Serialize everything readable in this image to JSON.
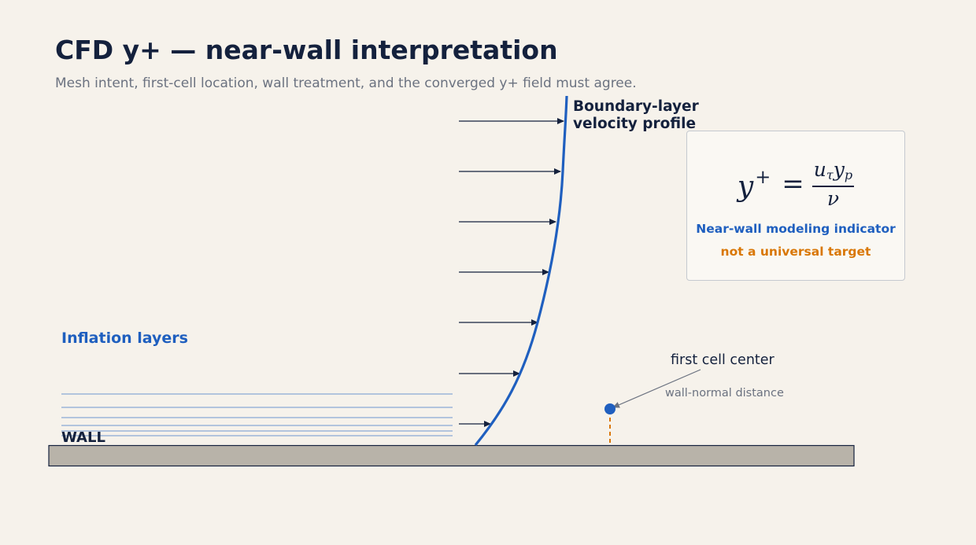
{
  "title": "CFD y+ — near-wall interpretation",
  "subtitle": "Mesh intent, first-cell location, wall treatment, and the converged y+ field must agree.",
  "profile": {
    "label_line1": "Boundary-layer",
    "label_line2": "velocity profile"
  },
  "formula": {
    "lhs": "y",
    "lhs_sup": "+",
    "eq": "=",
    "numerator_u": "u",
    "numerator_u_sub": "τ",
    "numerator_y": "y",
    "numerator_y_sub": "p",
    "denominator": "ν",
    "line1": "Near-wall modeling indicator",
    "line2": "not a universal target"
  },
  "inflation_label": "Inflation layers",
  "wall_label": "WALL",
  "first_cell_label": "first cell center",
  "distance_label": "wall-normal distance",
  "colors": {
    "background": "#f6f2eb",
    "navy": "#14213d",
    "blue": "#1f5fbf",
    "orange": "#d97706",
    "gray_text": "#6b7280",
    "wall_fill": "#b8b3a9",
    "inflation_line": "#6f95cf"
  }
}
